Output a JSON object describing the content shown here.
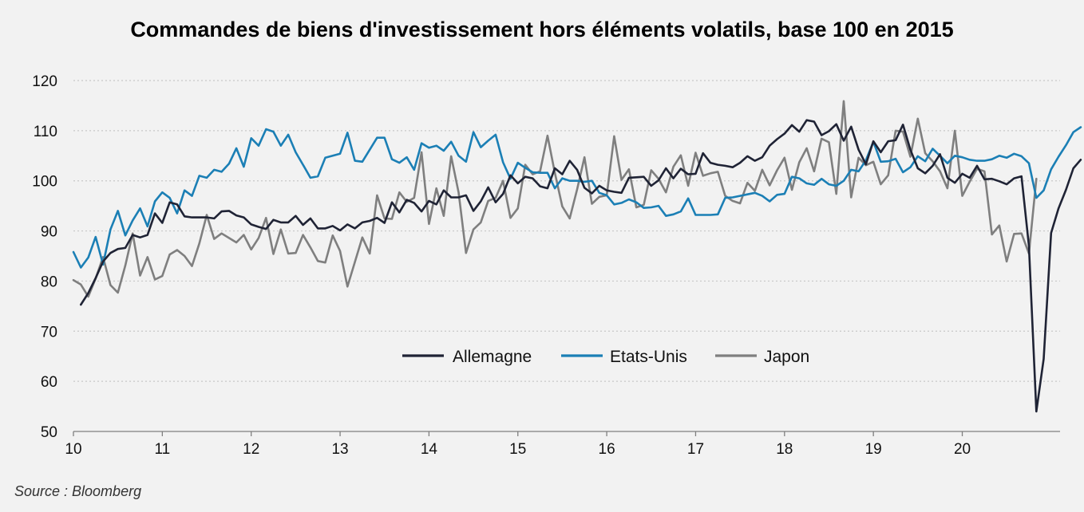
{
  "title": "Commandes de biens d'investissement hors éléments volatils, base 100 en 2015",
  "source": "Source : Bloomberg",
  "chart_data": {
    "type": "line",
    "title": "Commandes de biens d'investissement hors éléments volatils, base 100 en 2015",
    "xlabel": "",
    "ylabel": "",
    "xlim": [
      10,
      21.1
    ],
    "ylim": [
      50,
      120
    ],
    "x_ticks": [
      "10",
      "11",
      "12",
      "13",
      "14",
      "15",
      "16",
      "17",
      "18",
      "19",
      "20"
    ],
    "y_ticks": [
      120,
      110,
      100,
      90,
      80,
      70,
      60,
      50
    ],
    "grid": "horizontal dotted",
    "legend_position": "inside-lower-center",
    "x_start": 10.0,
    "x_step": 0.08333,
    "series": [
      {
        "name": "Allemagne",
        "color": "#1f2335",
        "start_index": 1,
        "values": [
          75.3,
          77.6,
          80.6,
          83.9,
          85.6,
          86.4,
          86.6,
          89.2,
          88.7,
          89.2,
          93.5,
          91.6,
          95.7,
          95.3,
          92.9,
          92.7,
          92.7,
          92.7,
          92.5,
          93.9,
          94.0,
          93.1,
          92.7,
          91.3,
          90.8,
          90.4,
          92.2,
          91.7,
          91.7,
          93.0,
          91.2,
          92.5,
          90.5,
          90.5,
          91.0,
          90.1,
          91.3,
          90.5,
          91.7,
          92.0,
          92.6,
          91.6,
          95.7,
          93.7,
          96.2,
          95.6,
          93.9,
          96.0,
          95.3,
          98.1,
          96.7,
          96.7,
          97.1,
          94.0,
          95.9,
          98.7,
          95.7,
          97.4,
          101.1,
          99.5,
          100.8,
          100.5,
          98.9,
          98.5,
          102.5,
          101.3,
          104.0,
          102.2,
          98.6,
          97.5,
          99.0,
          98.1,
          97.8,
          97.6,
          100.6,
          100.7,
          100.8,
          99.0,
          100.1,
          102.5,
          100.5,
          102.4,
          101.3,
          101.4,
          105.5,
          103.6,
          103.2,
          103.0,
          102.7,
          103.6,
          104.9,
          104.0,
          104.7,
          107.0,
          108.3,
          109.4,
          111.1,
          109.8,
          112.1,
          111.8,
          109.1,
          109.9,
          111.3,
          108.0,
          110.8,
          106.2,
          103.3,
          107.9,
          105.7,
          107.9,
          108.1,
          111.2,
          106.2,
          102.5,
          101.5,
          103.0,
          105.3,
          100.6,
          99.6,
          101.4,
          100.6,
          103.0,
          100.3,
          100.4,
          99.9,
          99.3,
          100.5,
          100.9,
          87.0,
          54.0,
          64.5,
          89.6,
          94.5,
          98.2,
          102.5,
          104.2
        ]
      },
      {
        "name": "Etats-Unis",
        "color": "#1b7fb5",
        "start_index": 0,
        "values": [
          85.8,
          82.7,
          84.7,
          88.8,
          83.3,
          90.3,
          94.0,
          89.1,
          92.1,
          94.5,
          90.9,
          95.9,
          97.7,
          96.6,
          93.5,
          98.1,
          97.0,
          101.0,
          100.6,
          102.2,
          101.8,
          103.4,
          106.5,
          102.8,
          108.5,
          107.0,
          110.3,
          109.8,
          107.0,
          109.2,
          105.7,
          103.2,
          100.6,
          100.9,
          104.6,
          105.0,
          105.4,
          109.6,
          104.0,
          103.8,
          106.2,
          108.6,
          108.6,
          104.3,
          103.6,
          104.7,
          102.2,
          107.5,
          106.6,
          107.0,
          106.0,
          107.8,
          105.0,
          103.8,
          109.7,
          106.7,
          108.0,
          109.2,
          103.7,
          100.4,
          103.6,
          102.6,
          101.7,
          101.6,
          101.6,
          98.5,
          100.5,
          100.0,
          100.0,
          99.8,
          100.0,
          97.6,
          97.1,
          95.3,
          95.6,
          96.3,
          95.7,
          94.6,
          94.7,
          95.0,
          93.0,
          93.3,
          93.9,
          96.5,
          93.2,
          93.2,
          93.2,
          93.3,
          96.6,
          96.7,
          97.0,
          97.3,
          97.6,
          97.0,
          95.9,
          97.2,
          97.4,
          100.8,
          100.5,
          99.5,
          99.2,
          100.4,
          99.3,
          99.0,
          100.0,
          102.2,
          101.9,
          104.1,
          107.8,
          103.8,
          103.9,
          104.4,
          101.7,
          102.7,
          104.9,
          103.9,
          106.4,
          105.0,
          103.5,
          105.0,
          104.7,
          104.2,
          104.0,
          104.0,
          104.3,
          105.0,
          104.6,
          105.4,
          104.9,
          103.5,
          96.6,
          98.1,
          102.3,
          104.8,
          107.1,
          109.7,
          110.7
        ]
      },
      {
        "name": "Japon",
        "color": "#7f7f7f",
        "start_index": 0,
        "values": [
          80.2,
          79.3,
          76.9,
          80.5,
          84.8,
          79.2,
          77.7,
          83.1,
          89.5,
          81.1,
          84.8,
          80.3,
          81.0,
          85.3,
          86.2,
          85.0,
          83.0,
          87.5,
          93.2,
          88.4,
          89.5,
          88.6,
          87.7,
          89.2,
          86.3,
          88.6,
          92.6,
          85.4,
          90.3,
          85.5,
          85.6,
          89.2,
          86.7,
          84.0,
          83.7,
          89.1,
          86.0,
          78.9,
          83.8,
          88.7,
          85.5,
          97.1,
          92.5,
          92.4,
          97.7,
          95.8,
          96.6,
          105.7,
          91.4,
          98.5,
          93.0,
          104.9,
          97.7,
          85.6,
          90.3,
          91.7,
          96.0,
          96.6,
          100.0,
          92.6,
          94.5,
          103.2,
          101.3,
          101.9,
          109.0,
          101.6,
          94.9,
          92.5,
          98.3,
          104.7,
          95.4,
          96.8,
          97.1,
          108.9,
          100.2,
          102.3,
          94.7,
          95.2,
          102.1,
          100.4,
          97.7,
          102.8,
          105.1,
          99.0,
          105.6,
          101.0,
          101.5,
          101.8,
          97.0,
          96.0,
          95.5,
          99.6,
          98.0,
          102.2,
          99.1,
          102.1,
          104.6,
          98.2,
          103.7,
          106.5,
          101.9,
          108.4,
          107.7,
          97.4,
          115.9,
          96.7,
          104.6,
          103.1,
          103.8,
          99.3,
          101.1,
          110.0,
          109.8,
          104.8,
          112.4,
          105.5,
          103.9,
          101.9,
          98.5,
          110.0,
          97.0,
          99.8,
          102.4,
          101.9,
          89.3,
          91.1,
          83.9,
          89.4,
          89.5,
          85.5,
          100.4
        ]
      }
    ]
  }
}
